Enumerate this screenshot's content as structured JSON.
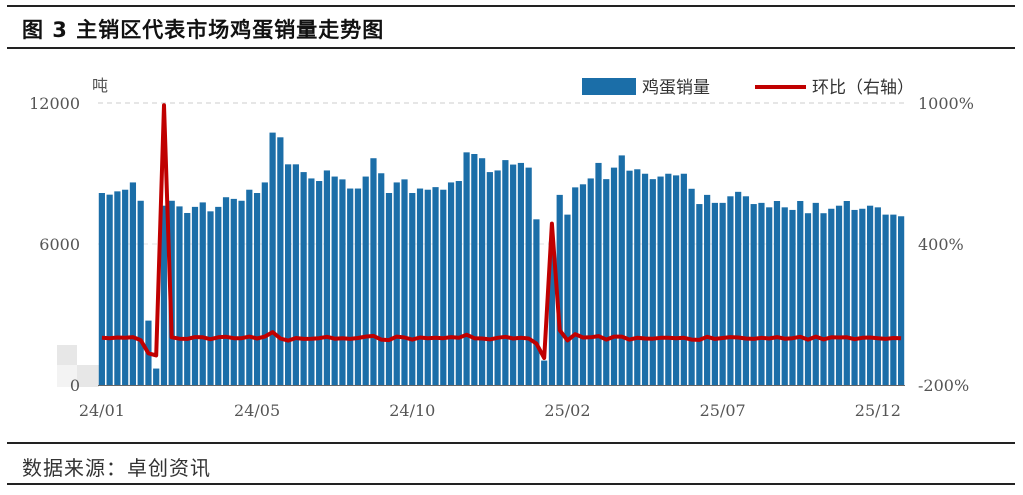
{
  "title": "图 3 主销区代表市场鸡蛋销量走势图",
  "source": "数据来源：卓创资讯",
  "chart_data": {
    "type": "bar+line",
    "title": "图 3 主销区代表市场鸡蛋销量走势图",
    "y_left_unit": "吨",
    "y_left_range": [
      0,
      12000
    ],
    "y_left_ticks": [
      "0",
      "6000",
      "12000"
    ],
    "y_right_range": [
      -200,
      1000
    ],
    "y_right_ticks": [
      "-200%",
      "400%",
      "1000%"
    ],
    "x_tick_labels": [
      "24/01",
      "24/05",
      "24/10",
      "25/02",
      "25/07",
      "25/12"
    ],
    "x_tick_every": 20,
    "grid": "horizontal dashed",
    "legend_placement": "top-right",
    "colors": {
      "bar": "#1b6ea8",
      "line": "#c00000"
    },
    "series": [
      {
        "name": "鸡蛋销量",
        "type": "bar",
        "axis": "left",
        "values": [
          8170,
          8100,
          8240,
          8310,
          8620,
          7840,
          2740,
          700,
          7630,
          7840,
          7600,
          7320,
          7580,
          7770,
          7390,
          7580,
          7990,
          7920,
          7840,
          8310,
          8170,
          8620,
          10740,
          10540,
          9390,
          9390,
          9060,
          8790,
          8680,
          9130,
          8870,
          8750,
          8360,
          8360,
          8870,
          9650,
          9010,
          8170,
          8620,
          8750,
          8170,
          8360,
          8310,
          8420,
          8310,
          8620,
          8680,
          9900,
          9830,
          9650,
          9060,
          9130,
          9570,
          9380,
          9450,
          9250,
          7050,
          1040,
          6100,
          8090,
          7250,
          8410,
          8540,
          8790,
          9450,
          8760,
          9250,
          9770,
          9120,
          9180,
          8990,
          8760,
          8870,
          8990,
          8920,
          8990,
          8350,
          7700,
          8090,
          7750,
          7750,
          8030,
          8220,
          8030,
          7700,
          7750,
          7560,
          7830,
          7560,
          7450,
          7830,
          7310,
          7750,
          7310,
          7500,
          7630,
          7830,
          7450,
          7500,
          7630,
          7560,
          7250,
          7250,
          7180
        ]
      },
      {
        "name": "环比（右轴）",
        "type": "line",
        "axis": "right",
        "unit": "%",
        "values": [
          1,
          -1,
          2,
          1,
          4,
          -9,
          -65,
          -74,
          990,
          3,
          -3,
          -4,
          4,
          3,
          -5,
          3,
          5,
          -1,
          -1,
          6,
          -2,
          6,
          25,
          -2,
          -11,
          0,
          -4,
          -3,
          -1,
          5,
          -3,
          -1,
          -4,
          0,
          6,
          9,
          -7,
          -9,
          6,
          2,
          -7,
          2,
          -1,
          1,
          -1,
          4,
          1,
          14,
          -1,
          -2,
          -6,
          1,
          5,
          -2,
          1,
          -2,
          -24,
          -85,
          487,
          33,
          -10,
          16,
          2,
          3,
          8,
          -7,
          6,
          6,
          -7,
          1,
          -2,
          -3,
          1,
          1,
          -1,
          1,
          -7,
          -8,
          5,
          -4,
          0,
          4,
          2,
          -2,
          -4,
          1,
          -2,
          4,
          -3,
          -1,
          5,
          -7,
          6,
          -6,
          3,
          2,
          3,
          -5,
          1,
          2,
          -1,
          -4,
          0,
          -1
        ]
      }
    ]
  }
}
